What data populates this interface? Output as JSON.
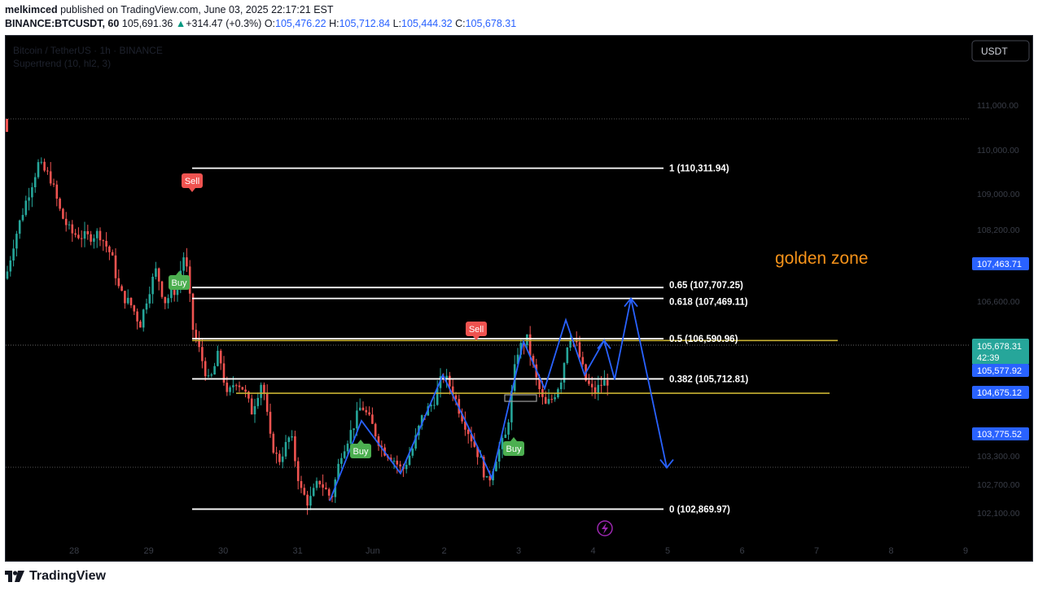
{
  "header": {
    "publisher": "melkimced",
    "published_text": "published on TradingView.com, June 03, 2025 22:17:21 EST",
    "symbol": "BINANCE:BTCUSDT, 60",
    "last": "105,691.36",
    "change": "+314.47 (+0.3%)",
    "o_label": "O:",
    "o": "105,476.22",
    "h_label": "H:",
    "h": "105,712.84",
    "l_label": "L:",
    "l": "105,444.32",
    "c_label": "C:",
    "c": "105,678.31"
  },
  "chart_title": "Bitcoin / TetherUS · 1h · BINANCE",
  "indicator": "Supertrend (10, hl2, 3)",
  "currency_button": "USDT",
  "footer": {
    "brand": "TradingView",
    "logo_icon": "tradingview-logo-icon"
  },
  "colors": {
    "background": "#000000",
    "up": "#26a69a",
    "down": "#ef5350",
    "fib": "#ffffff",
    "zone": "#c9b233",
    "projection": "#2962ff",
    "golden_zone_text": "#f7931a",
    "buy": "#4caf50",
    "sell": "#ef5350"
  },
  "chart_data": {
    "type": "candlestick",
    "y_axis_ticks": [
      "111,000.00",
      "110,000.00",
      "109,000.00",
      "108,200.00",
      "106,600.00",
      "103,300.00",
      "102,700.00",
      "102,100.00"
    ],
    "x_axis_ticks": [
      "28",
      "29",
      "30",
      "31",
      "Jun",
      "2",
      "3",
      "4",
      "5",
      "6",
      "7",
      "8",
      "9"
    ],
    "fib_levels": [
      {
        "label": "1 (110,311.94)",
        "price": 110311.94
      },
      {
        "label": "0.65 (107,707.25)",
        "price": 107707.25
      },
      {
        "label": "0.618 (107,469.11)",
        "price": 107469.11
      },
      {
        "label": "0.5 (106,590.96)",
        "price": 106590.96
      },
      {
        "label": "0.382 (105,712.81)",
        "price": 105712.81
      },
      {
        "label": "0 (102,869.97)",
        "price": 102869.97
      }
    ],
    "zone_lines": [
      {
        "price": 106550,
        "from": "May 29",
        "to": "Jun 7"
      },
      {
        "price": 105400,
        "from": "May 30",
        "to": "Jun 7"
      }
    ],
    "annotation": "golden zone",
    "signals": [
      {
        "type": "Sell",
        "label": "Sell",
        "time": "May 29"
      },
      {
        "type": "Buy",
        "label": "Buy",
        "time": "May 29"
      },
      {
        "type": "Buy",
        "label": "Buy",
        "time": "Jun 1"
      },
      {
        "type": "Sell",
        "label": "Sell",
        "time": "Jun 2"
      },
      {
        "type": "Buy",
        "label": "Buy",
        "time": "Jun 3"
      }
    ],
    "price_labels": [
      {
        "value": "107,463.71",
        "color": "#2962ff"
      },
      {
        "value": "105,678.31",
        "sub": "42:39",
        "color": "#26a69a"
      },
      {
        "value": "105,577.92",
        "color": "#2962ff"
      },
      {
        "value": "104,675.12",
        "color": "#2962ff"
      },
      {
        "value": "103,775.52",
        "color": "#2962ff"
      }
    ],
    "current_price": 105678.31,
    "range_high": 110700,
    "range_low": 102900,
    "projection_path_prices": [
      103050,
      104800,
      103650,
      105800,
      104600,
      103550,
      106530,
      105500,
      107000,
      105800,
      106550,
      105700,
      107469,
      103775
    ]
  }
}
